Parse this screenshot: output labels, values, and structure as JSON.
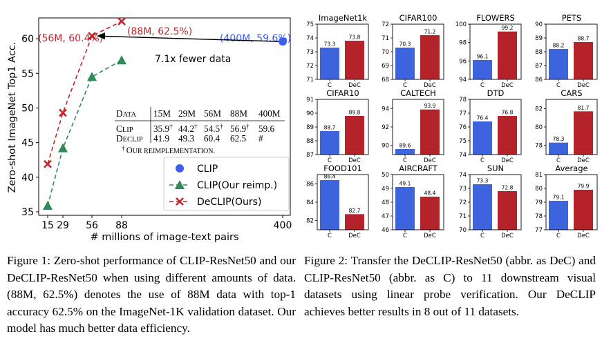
{
  "figure1": {
    "caption": "Figure 1:  Zero-shot performance of CLIP-ResNet50 and our DeCLIP-ResNet50 when using different amounts of data. (88M, 62.5%) denotes the use of 88M data with top-1 accuracy 62.5% on the ImageNet-1K validation dataset. Our model has much better data efficiency.",
    "chart_data": {
      "type": "line",
      "xlabel": "# millions of image-text pairs",
      "ylabel": "Zero-shot ImageNet Top1 Acc.",
      "x_ticks": [
        "15",
        "29",
        "56",
        "88",
        "400"
      ],
      "y_ticks": [
        "35",
        "40",
        "45",
        "50",
        "55",
        "60"
      ],
      "ylim": [
        34.5,
        63
      ],
      "series": [
        {
          "name": "CLIP",
          "color": "#3d5ef0",
          "marker": "circle",
          "line": "none",
          "x": [
            400
          ],
          "y": [
            59.6
          ]
        },
        {
          "name": "CLIP(Our reimp.)",
          "color": "#2e8b57",
          "marker": "triangle",
          "line": "dashed",
          "x": [
            15,
            29,
            56,
            88
          ],
          "y": [
            35.9,
            44.2,
            54.5,
            56.9
          ]
        },
        {
          "name": "DeCLIP(Ours)",
          "color": "#c0262c",
          "marker": "x",
          "line": "dashed",
          "x": [
            15,
            29,
            56,
            88
          ],
          "y": [
            41.9,
            49.3,
            60.4,
            62.5
          ]
        }
      ],
      "annotations": {
        "point_56": "(56M, 60.4%)",
        "point_88": "(88M, 62.5%)",
        "point_400": "(400M, 59.6%)",
        "arrow_text": "7.1x fewer data"
      },
      "legend_position": "lower-right",
      "inset_table": {
        "header": [
          "Data",
          "15M",
          "29M",
          "56M",
          "88M",
          "400M"
        ],
        "rows": [
          [
            "CLIP",
            "35.9†",
            "44.2†",
            "54.5†",
            "56.9†",
            "59.6"
          ],
          [
            "DeCLIP",
            "41.9",
            "49.3",
            "60.4",
            "62.5",
            "#"
          ]
        ],
        "footnote": "† Our reimplementation."
      }
    }
  },
  "figure2": {
    "caption": "Figure 2: Transfer the DeCLIP-ResNet50 (abbr. as DeC) and CLIP-ResNet50 (abbr. as C) to 11 downstream visual datasets using linear probe verification. Our DeCLIP achieves better results in 8 out of 11 datasets.",
    "chart_data": [
      {
        "type": "bar",
        "title": "ImageNet1k",
        "categories": [
          "C",
          "DeC"
        ],
        "values": [
          73.3,
          73.8
        ],
        "labels": [
          "73.3",
          "73.8"
        ],
        "colors": [
          "#3d63dd",
          "#b4232a"
        ],
        "ylim": [
          71,
          75
        ],
        "yticks": [
          "71",
          "72",
          "73",
          "74",
          "75"
        ]
      },
      {
        "type": "bar",
        "title": "CIFAR100",
        "categories": [
          "C",
          "DeC"
        ],
        "values": [
          70.3,
          71.2
        ],
        "labels": [
          "70.3",
          "71.2"
        ],
        "colors": [
          "#3d63dd",
          "#b4232a"
        ],
        "ylim": [
          68,
          72
        ],
        "yticks": [
          "68",
          "69",
          "70",
          "71",
          "72"
        ]
      },
      {
        "type": "bar",
        "title": "FLOWERS",
        "categories": [
          "C",
          "DeC"
        ],
        "values": [
          96.1,
          99.2
        ],
        "labels": [
          "96.1",
          "99.2"
        ],
        "colors": [
          "#3d63dd",
          "#b4232a"
        ],
        "ylim": [
          94,
          100
        ],
        "yticks": [
          "94",
          "96",
          "98",
          "100"
        ]
      },
      {
        "type": "bar",
        "title": "PETS",
        "categories": [
          "C",
          "DeC"
        ],
        "values": [
          88.2,
          88.7
        ],
        "labels": [
          "88.2",
          "88.7"
        ],
        "colors": [
          "#3d63dd",
          "#b4232a"
        ],
        "ylim": [
          86,
          90
        ],
        "yticks": [
          "86",
          "87",
          "88",
          "89",
          "90"
        ]
      },
      {
        "type": "bar",
        "title": "CIFAR10",
        "categories": [
          "C",
          "DeC"
        ],
        "values": [
          88.7,
          89.8
        ],
        "labels": [
          "88.7",
          "89.8"
        ],
        "colors": [
          "#3d63dd",
          "#b4232a"
        ],
        "ylim": [
          87,
          91
        ],
        "yticks": [
          "87",
          "88",
          "89",
          "90",
          "91"
        ]
      },
      {
        "type": "bar",
        "title": "CALTECH",
        "categories": [
          "C",
          "DeC"
        ],
        "values": [
          89.6,
          93.9
        ],
        "labels": [
          "89.6",
          "93.9"
        ],
        "colors": [
          "#3d63dd",
          "#b4232a"
        ],
        "ylim": [
          89,
          95
        ],
        "yticks": [
          "90",
          "92",
          "94"
        ]
      },
      {
        "type": "bar",
        "title": "DTD",
        "categories": [
          "C",
          "DeC"
        ],
        "values": [
          76.4,
          76.8
        ],
        "labels": [
          "76.4",
          "76.8"
        ],
        "colors": [
          "#3d63dd",
          "#b4232a"
        ],
        "ylim": [
          74,
          78
        ],
        "yticks": [
          "74",
          "75",
          "76",
          "77",
          "78"
        ]
      },
      {
        "type": "bar",
        "title": "CARS",
        "categories": [
          "C",
          "DeC"
        ],
        "values": [
          78.3,
          81.7
        ],
        "labels": [
          "78.3",
          "81.7"
        ],
        "colors": [
          "#3d63dd",
          "#b4232a"
        ],
        "ylim": [
          77,
          83
        ],
        "yticks": [
          "78",
          "80",
          "82"
        ]
      },
      {
        "type": "bar",
        "title": "FOOD101",
        "categories": [
          "C",
          "DeC"
        ],
        "values": [
          86.4,
          82.7
        ],
        "labels": [
          "86.4",
          "82.7"
        ],
        "colors": [
          "#3d63dd",
          "#b4232a"
        ],
        "ylim": [
          81,
          87
        ],
        "yticks": [
          "82",
          "84",
          "86"
        ]
      },
      {
        "type": "bar",
        "title": "AIRCRAFT",
        "categories": [
          "C",
          "DeC"
        ],
        "values": [
          49.1,
          48.4
        ],
        "labels": [
          "49.1",
          "48.4"
        ],
        "colors": [
          "#3d63dd",
          "#b4232a"
        ],
        "ylim": [
          46,
          50
        ],
        "yticks": [
          "46",
          "47",
          "48",
          "49",
          "50"
        ]
      },
      {
        "type": "bar",
        "title": "SUN",
        "categories": [
          "C",
          "DeC"
        ],
        "values": [
          73.3,
          72.8
        ],
        "labels": [
          "73.3",
          "72.8"
        ],
        "colors": [
          "#3d63dd",
          "#b4232a"
        ],
        "ylim": [
          70,
          74
        ],
        "yticks": [
          "70",
          "71",
          "72",
          "73",
          "74"
        ]
      },
      {
        "type": "bar",
        "title": "Average",
        "categories": [
          "C",
          "DeC"
        ],
        "values": [
          79.1,
          79.9
        ],
        "labels": [
          "79.1",
          "79.9"
        ],
        "colors": [
          "#3d63dd",
          "#b4232a"
        ],
        "ylim": [
          77,
          81
        ],
        "yticks": [
          "77",
          "78",
          "79",
          "80",
          "81"
        ]
      }
    ]
  }
}
